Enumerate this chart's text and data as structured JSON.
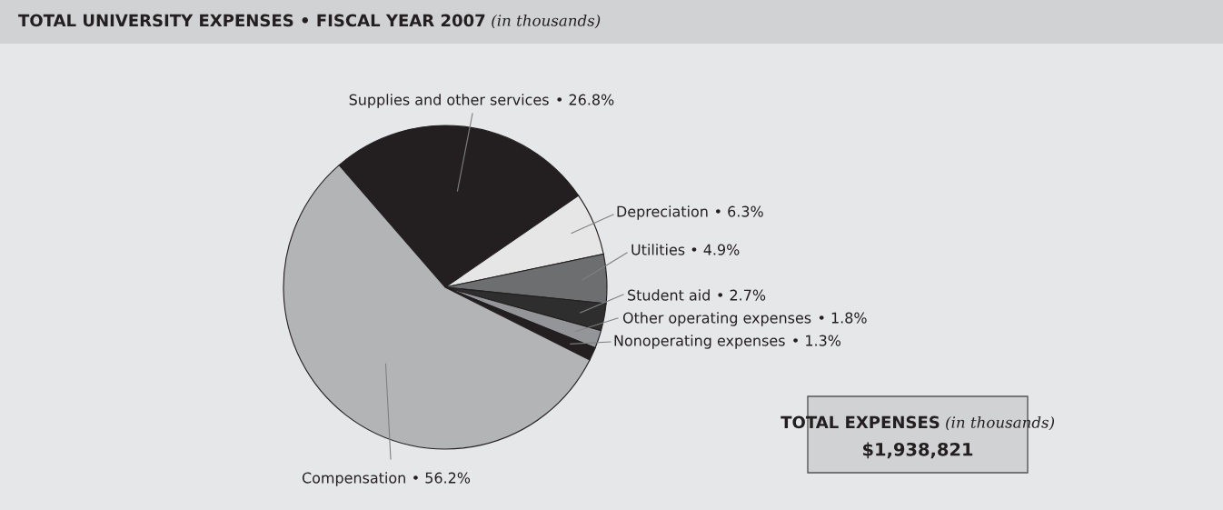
{
  "chart_data": {
    "type": "pie",
    "title": "TOTAL UNIVERSITY EXPENSES • FISCAL YEAR 2007",
    "subtitle": "(in thousands)",
    "categories": [
      "Supplies and other services",
      "Depreciation",
      "Utilities",
      "Student aid",
      "Other operating expenses",
      "Nonoperating expenses",
      "Compensation"
    ],
    "values": [
      26.8,
      6.3,
      4.9,
      2.7,
      1.8,
      1.3,
      56.2
    ],
    "colors": [
      "#231f20",
      "#e6e6e6",
      "#6d6e70",
      "#2f2e2f",
      "#939598",
      "#231f20",
      "#b3b4b6"
    ],
    "value_labels": [
      "• 26.8%",
      "• 6.3%",
      "• 4.9%",
      "• 2.7%",
      "• 1.8%",
      "• 1.3%",
      "• 56.2%"
    ],
    "annotations": [
      "TOTAL EXPENSES",
      "(in thousands)",
      "$1,938,821"
    ]
  }
}
